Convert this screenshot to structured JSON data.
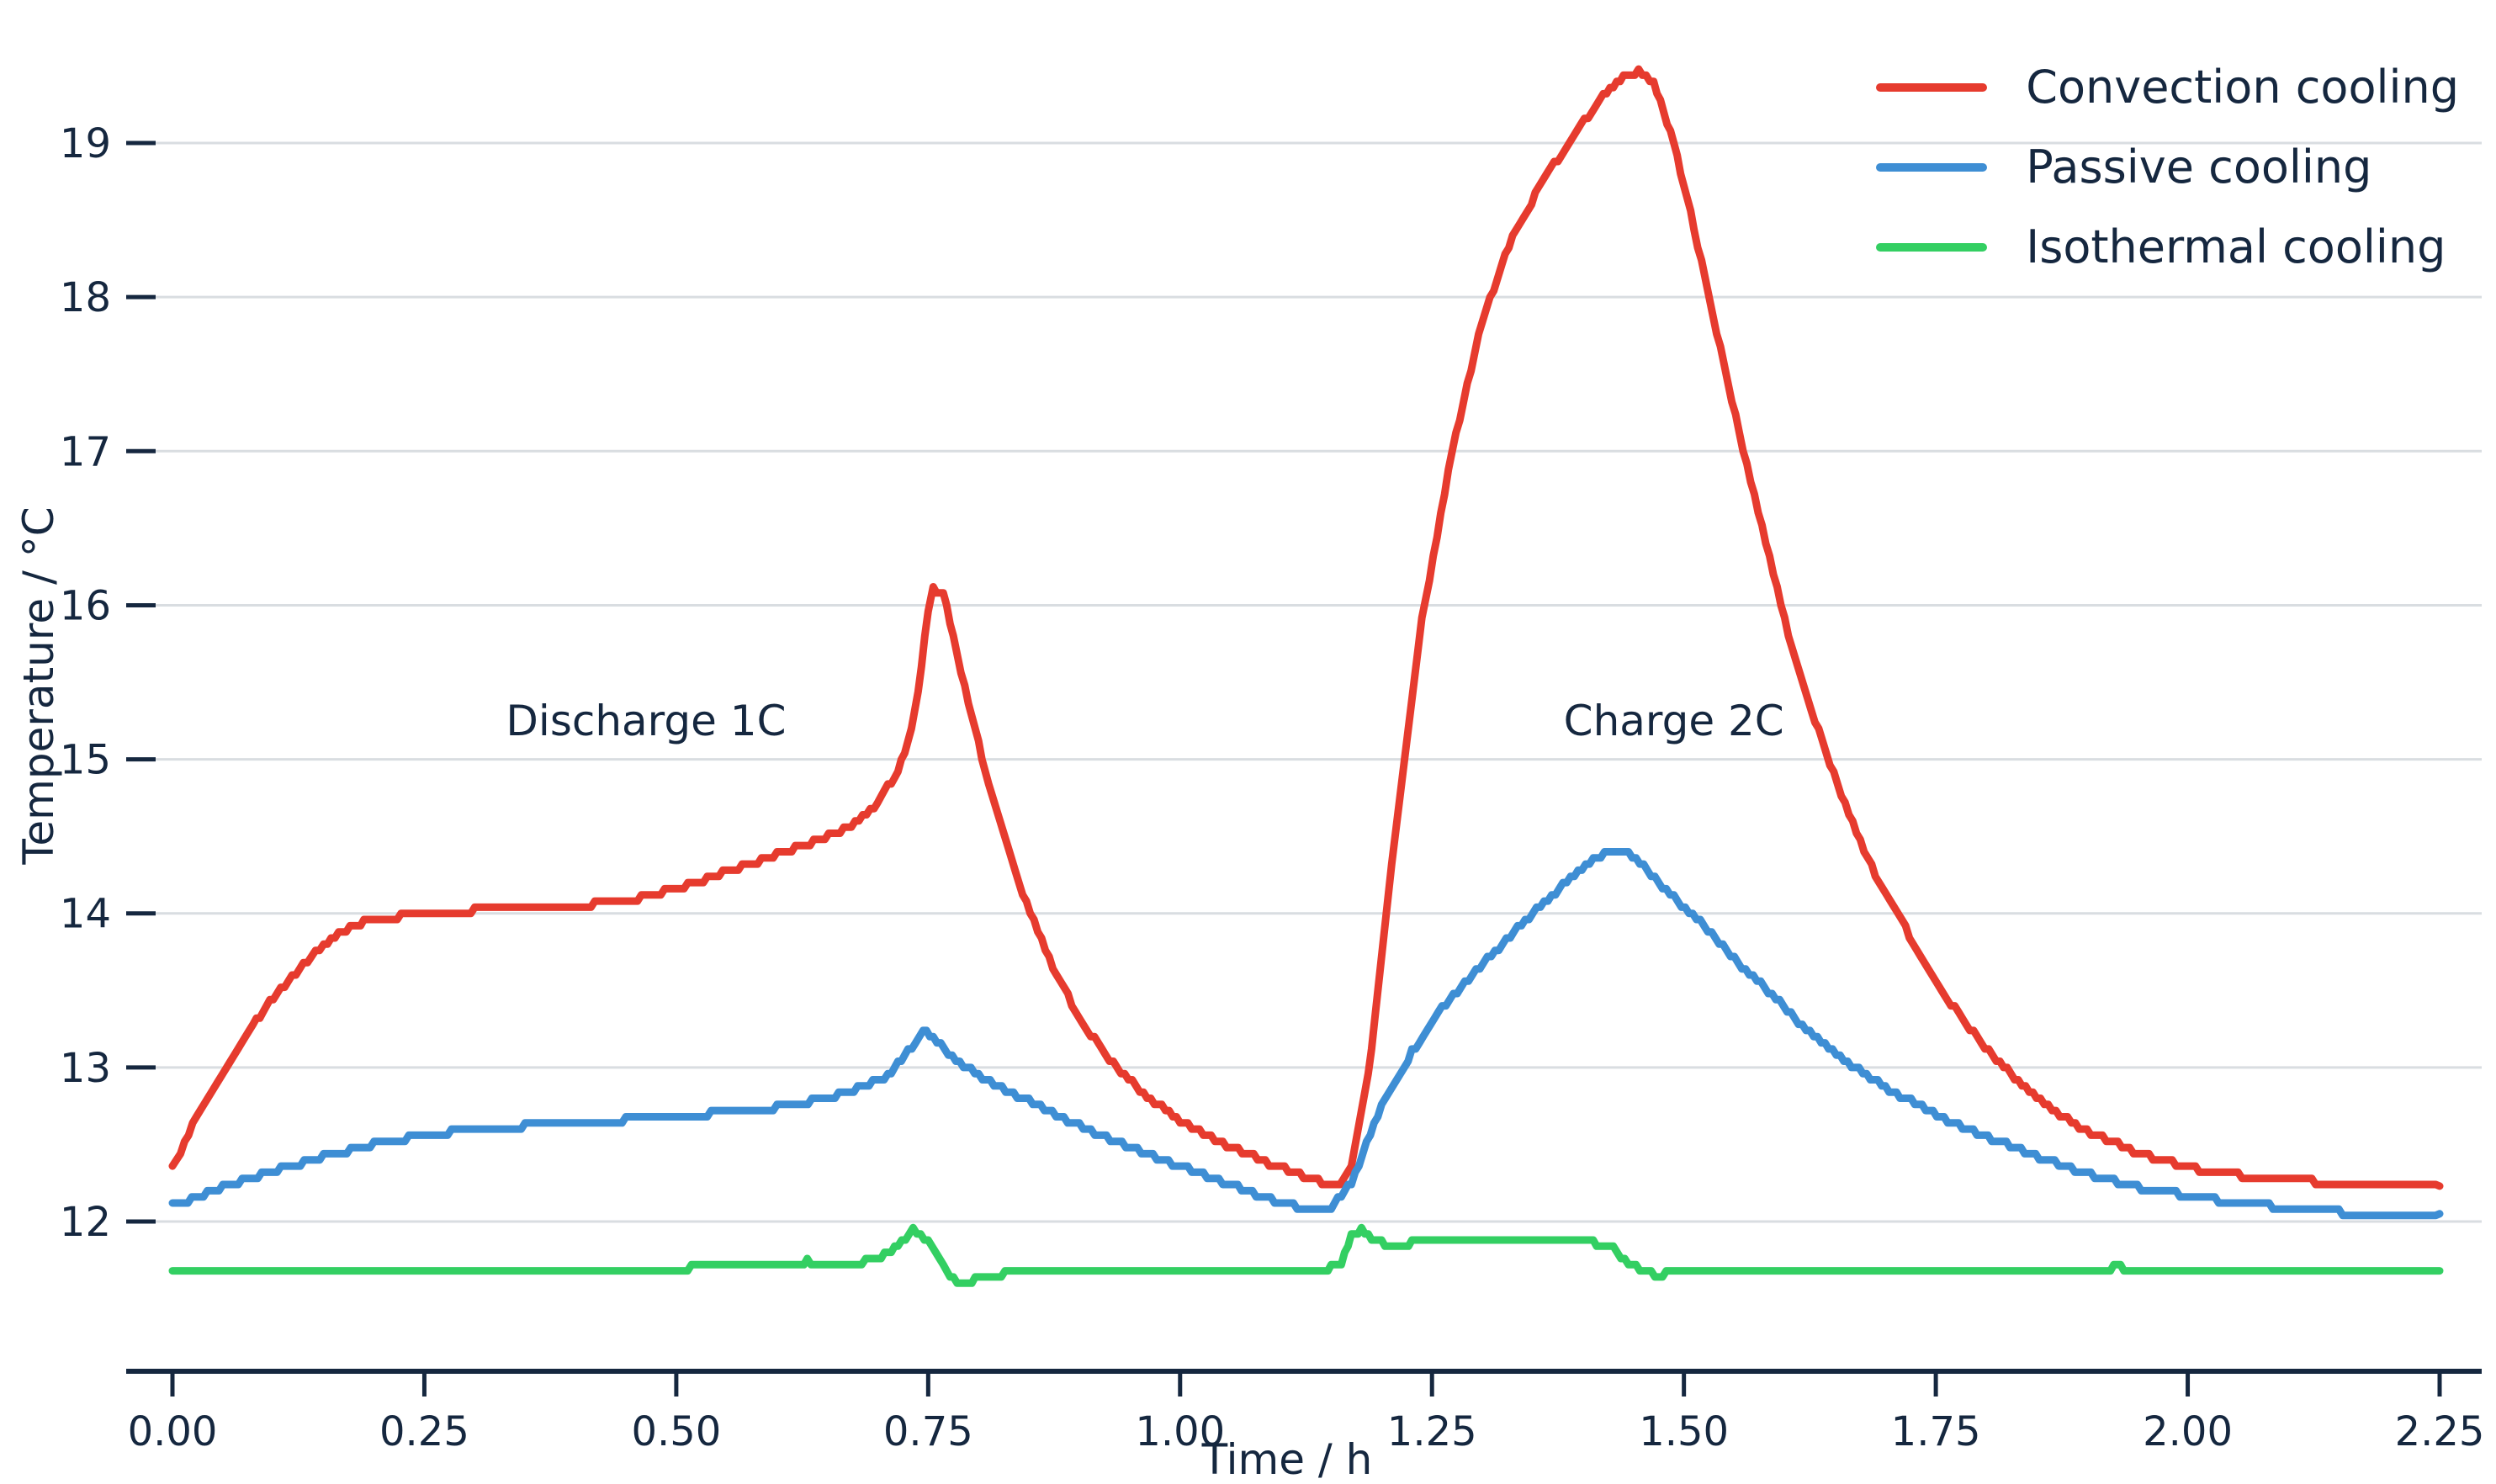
{
  "chart_data": {
    "type": "line",
    "title": "",
    "xlabel": "Time / h",
    "ylabel": "Temperature / °C",
    "xlim": [
      0,
      2.25
    ],
    "ylim": [
      11.5,
      19.7
    ],
    "xticks": [
      0,
      0.25,
      0.5,
      0.75,
      1.0,
      1.25,
      1.5,
      1.75,
      2.0,
      2.25
    ],
    "yticks": [
      12,
      13,
      14,
      15,
      16,
      17,
      18,
      19
    ],
    "grid": "horizontal",
    "legend_position": "top-right",
    "colors": {
      "background": "#ffffff",
      "grid": "#d9dde1",
      "text": "#15273f",
      "axis": "#15273f"
    },
    "annotations": [
      {
        "text": "Discharge 1C",
        "x": 0.47,
        "y": 15.25
      },
      {
        "text": "Charge 2C",
        "x": 1.49,
        "y": 15.25
      }
    ],
    "series": [
      {
        "name": "Convection cooling",
        "color": "#e63b2e",
        "points": [
          [
            0.0,
            12.35
          ],
          [
            0.02,
            12.62
          ],
          [
            0.05,
            12.97
          ],
          [
            0.08,
            13.28
          ],
          [
            0.1,
            13.45
          ],
          [
            0.13,
            13.67
          ],
          [
            0.15,
            13.8
          ],
          [
            0.18,
            13.92
          ],
          [
            0.2,
            13.96
          ],
          [
            0.25,
            14.0
          ],
          [
            0.3,
            14.02
          ],
          [
            0.35,
            14.04
          ],
          [
            0.4,
            14.05
          ],
          [
            0.45,
            14.08
          ],
          [
            0.5,
            14.16
          ],
          [
            0.55,
            14.27
          ],
          [
            0.6,
            14.38
          ],
          [
            0.64,
            14.47
          ],
          [
            0.67,
            14.55
          ],
          [
            0.7,
            14.72
          ],
          [
            0.72,
            14.92
          ],
          [
            0.73,
            15.1
          ],
          [
            0.74,
            15.45
          ],
          [
            0.75,
            15.95
          ],
          [
            0.755,
            16.1
          ],
          [
            0.765,
            16.08
          ],
          [
            0.775,
            15.8
          ],
          [
            0.79,
            15.35
          ],
          [
            0.81,
            14.85
          ],
          [
            0.84,
            14.2
          ],
          [
            0.87,
            13.7
          ],
          [
            0.9,
            13.32
          ],
          [
            0.93,
            13.05
          ],
          [
            0.96,
            12.85
          ],
          [
            1.0,
            12.65
          ],
          [
            1.05,
            12.48
          ],
          [
            1.1,
            12.35
          ],
          [
            1.13,
            12.28
          ],
          [
            1.155,
            12.22
          ],
          [
            1.17,
            12.35
          ],
          [
            1.19,
            13.1
          ],
          [
            1.21,
            14.3
          ],
          [
            1.24,
            15.9
          ],
          [
            1.27,
            17.0
          ],
          [
            1.3,
            17.85
          ],
          [
            1.33,
            18.4
          ],
          [
            1.36,
            18.75
          ],
          [
            1.39,
            19.05
          ],
          [
            1.42,
            19.3
          ],
          [
            1.44,
            19.42
          ],
          [
            1.455,
            19.47
          ],
          [
            1.47,
            19.4
          ],
          [
            1.49,
            19.0
          ],
          [
            1.51,
            18.45
          ],
          [
            1.54,
            17.55
          ],
          [
            1.57,
            16.7
          ],
          [
            1.6,
            15.9
          ],
          [
            1.63,
            15.25
          ],
          [
            1.66,
            14.7
          ],
          [
            1.69,
            14.25
          ],
          [
            1.72,
            13.9
          ],
          [
            1.75,
            13.55
          ],
          [
            1.78,
            13.28
          ],
          [
            1.81,
            13.05
          ],
          [
            1.85,
            12.8
          ],
          [
            1.9,
            12.58
          ],
          [
            1.95,
            12.45
          ],
          [
            2.0,
            12.35
          ],
          [
            2.05,
            12.3
          ],
          [
            2.1,
            12.27
          ],
          [
            2.15,
            12.25
          ],
          [
            2.2,
            12.23
          ],
          [
            2.25,
            12.23
          ]
        ]
      },
      {
        "name": "Passive cooling",
        "color": "#3e8ed4",
        "points": [
          [
            0.0,
            12.1
          ],
          [
            0.05,
            12.22
          ],
          [
            0.1,
            12.33
          ],
          [
            0.15,
            12.42
          ],
          [
            0.2,
            12.5
          ],
          [
            0.25,
            12.56
          ],
          [
            0.3,
            12.6
          ],
          [
            0.35,
            12.62
          ],
          [
            0.4,
            12.64
          ],
          [
            0.45,
            12.66
          ],
          [
            0.5,
            12.68
          ],
          [
            0.55,
            12.71
          ],
          [
            0.6,
            12.74
          ],
          [
            0.65,
            12.8
          ],
          [
            0.68,
            12.86
          ],
          [
            0.71,
            12.95
          ],
          [
            0.73,
            13.1
          ],
          [
            0.745,
            13.24
          ],
          [
            0.755,
            13.2
          ],
          [
            0.77,
            13.08
          ],
          [
            0.8,
            12.95
          ],
          [
            0.85,
            12.78
          ],
          [
            0.9,
            12.62
          ],
          [
            0.95,
            12.48
          ],
          [
            1.0,
            12.36
          ],
          [
            1.05,
            12.24
          ],
          [
            1.09,
            12.14
          ],
          [
            1.12,
            12.09
          ],
          [
            1.15,
            12.09
          ],
          [
            1.17,
            12.25
          ],
          [
            1.2,
            12.75
          ],
          [
            1.23,
            13.1
          ],
          [
            1.26,
            13.38
          ],
          [
            1.29,
            13.6
          ],
          [
            1.32,
            13.8
          ],
          [
            1.35,
            14.0
          ],
          [
            1.38,
            14.18
          ],
          [
            1.41,
            14.35
          ],
          [
            1.425,
            14.4
          ],
          [
            1.445,
            14.38
          ],
          [
            1.46,
            14.3
          ],
          [
            1.49,
            14.1
          ],
          [
            1.52,
            13.92
          ],
          [
            1.55,
            13.7
          ],
          [
            1.58,
            13.52
          ],
          [
            1.61,
            13.32
          ],
          [
            1.64,
            13.15
          ],
          [
            1.67,
            13.0
          ],
          [
            1.7,
            12.87
          ],
          [
            1.74,
            12.73
          ],
          [
            1.78,
            12.6
          ],
          [
            1.82,
            12.5
          ],
          [
            1.86,
            12.4
          ],
          [
            1.9,
            12.31
          ],
          [
            1.95,
            12.22
          ],
          [
            2.0,
            12.17
          ],
          [
            2.05,
            12.12
          ],
          [
            2.1,
            12.09
          ],
          [
            2.15,
            12.06
          ],
          [
            2.2,
            12.05
          ],
          [
            2.25,
            12.05
          ]
        ]
      },
      {
        "name": "Isothermal cooling",
        "color": "#33cf62",
        "points": [
          [
            0.0,
            11.68
          ],
          [
            0.5,
            11.68
          ],
          [
            0.53,
            11.73
          ],
          [
            0.57,
            11.71
          ],
          [
            0.61,
            11.71
          ],
          [
            0.63,
            11.74
          ],
          [
            0.66,
            11.72
          ],
          [
            0.7,
            11.75
          ],
          [
            0.72,
            11.84
          ],
          [
            0.735,
            11.95
          ],
          [
            0.75,
            11.88
          ],
          [
            0.765,
            11.7
          ],
          [
            0.775,
            11.62
          ],
          [
            0.79,
            11.6
          ],
          [
            0.8,
            11.65
          ],
          [
            0.815,
            11.62
          ],
          [
            0.83,
            11.68
          ],
          [
            1.14,
            11.68
          ],
          [
            1.16,
            11.72
          ],
          [
            1.17,
            11.9
          ],
          [
            1.18,
            11.94
          ],
          [
            1.19,
            11.88
          ],
          [
            1.21,
            11.84
          ],
          [
            1.23,
            11.86
          ],
          [
            1.3,
            11.86
          ],
          [
            1.41,
            11.86
          ],
          [
            1.43,
            11.82
          ],
          [
            1.445,
            11.73
          ],
          [
            1.46,
            11.68
          ],
          [
            1.475,
            11.64
          ],
          [
            1.49,
            11.68
          ],
          [
            1.92,
            11.68
          ],
          [
            1.93,
            11.72
          ],
          [
            1.94,
            11.68
          ],
          [
            2.25,
            11.68
          ]
        ]
      }
    ]
  }
}
